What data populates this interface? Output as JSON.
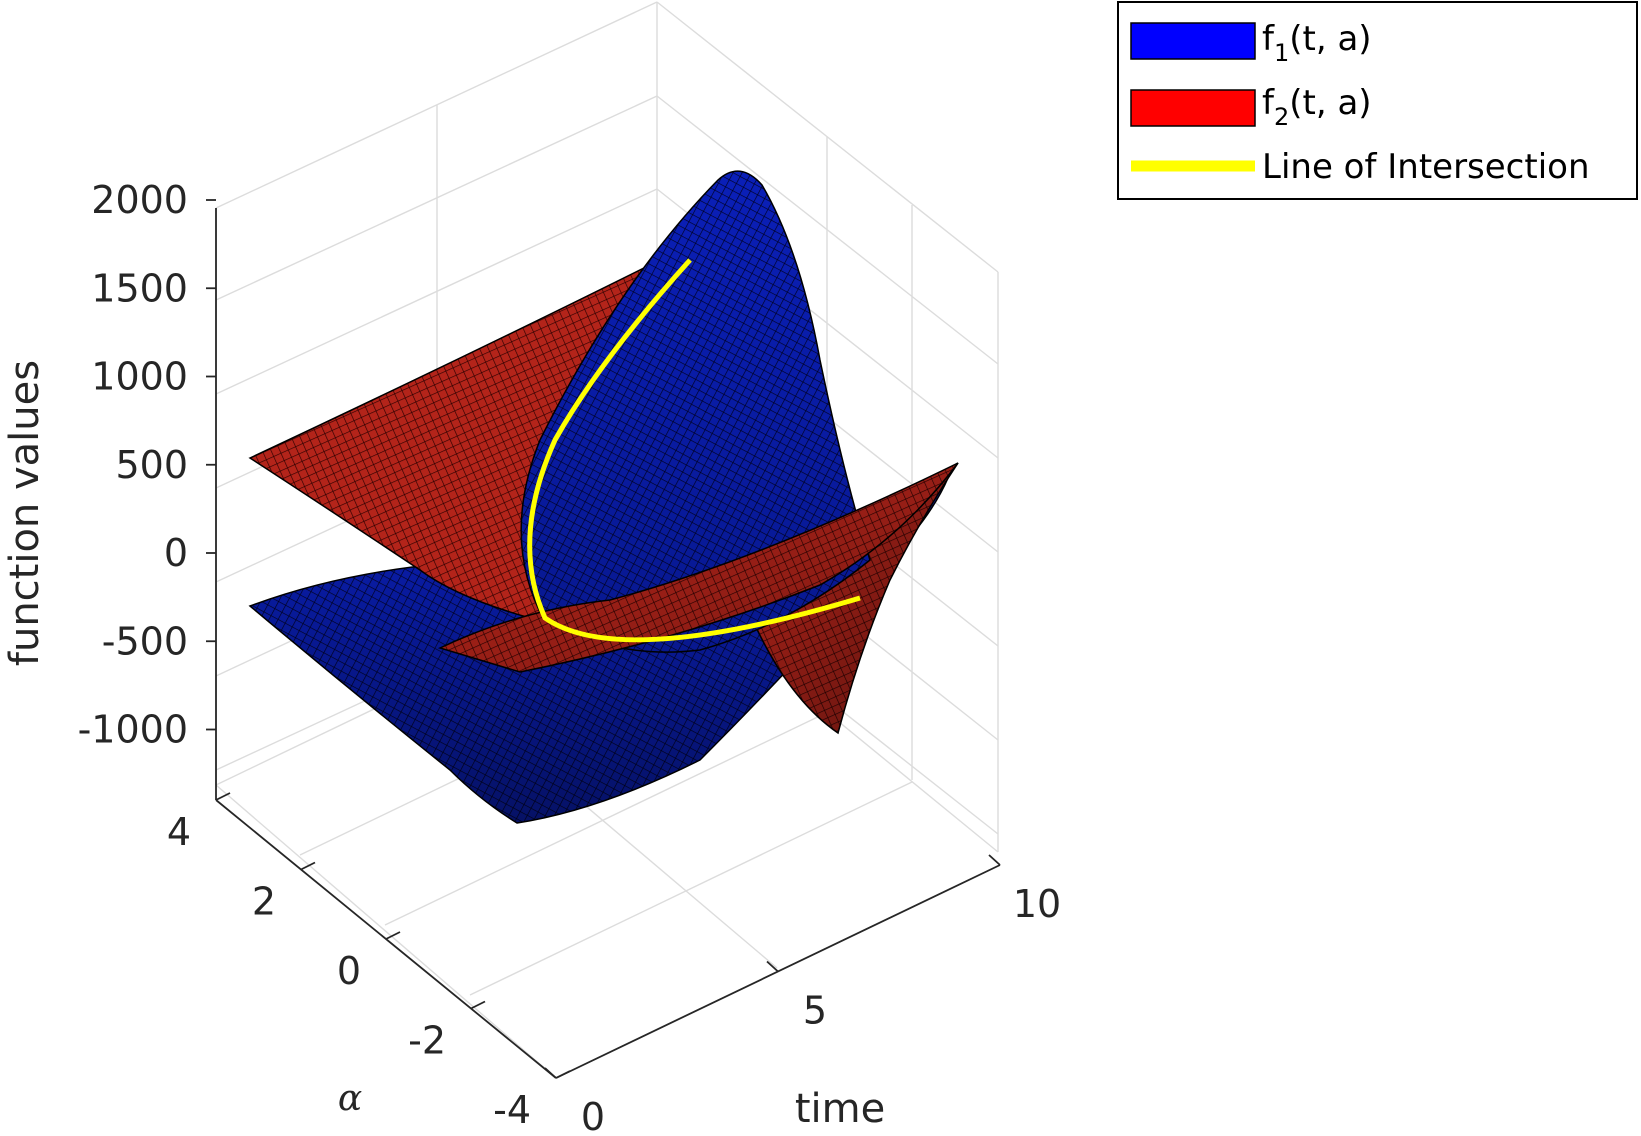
{
  "chart_data": {
    "type": "surface3d",
    "xlabel": "time",
    "ylabel": "α",
    "zlabel": "function values",
    "xlim": [
      0,
      10
    ],
    "ylim": [
      -4,
      4
    ],
    "zlim": [
      -1200,
      2000
    ],
    "x_ticks": [
      "0",
      "5",
      "10"
    ],
    "y_ticks": [
      "-4",
      "-2",
      "0",
      "2",
      "4"
    ],
    "z_ticks": [
      "-1000",
      "-500",
      "0",
      "500",
      "1000",
      "1500",
      "2000"
    ],
    "grid": true,
    "legend_position": "top-right",
    "series": [
      {
        "name": "f1(t, a)",
        "name_base": "f",
        "name_sub": "1",
        "name_rest": "(t, a)",
        "kind": "surface",
        "color": "#0000ff"
      },
      {
        "name": "f2(t, a)",
        "name_base": "f",
        "name_sub": "2",
        "name_rest": "(t, a)",
        "kind": "surface",
        "color": "#ff0000"
      },
      {
        "name": "Line of Intersection",
        "kind": "line",
        "color": "#ffff00"
      }
    ]
  }
}
